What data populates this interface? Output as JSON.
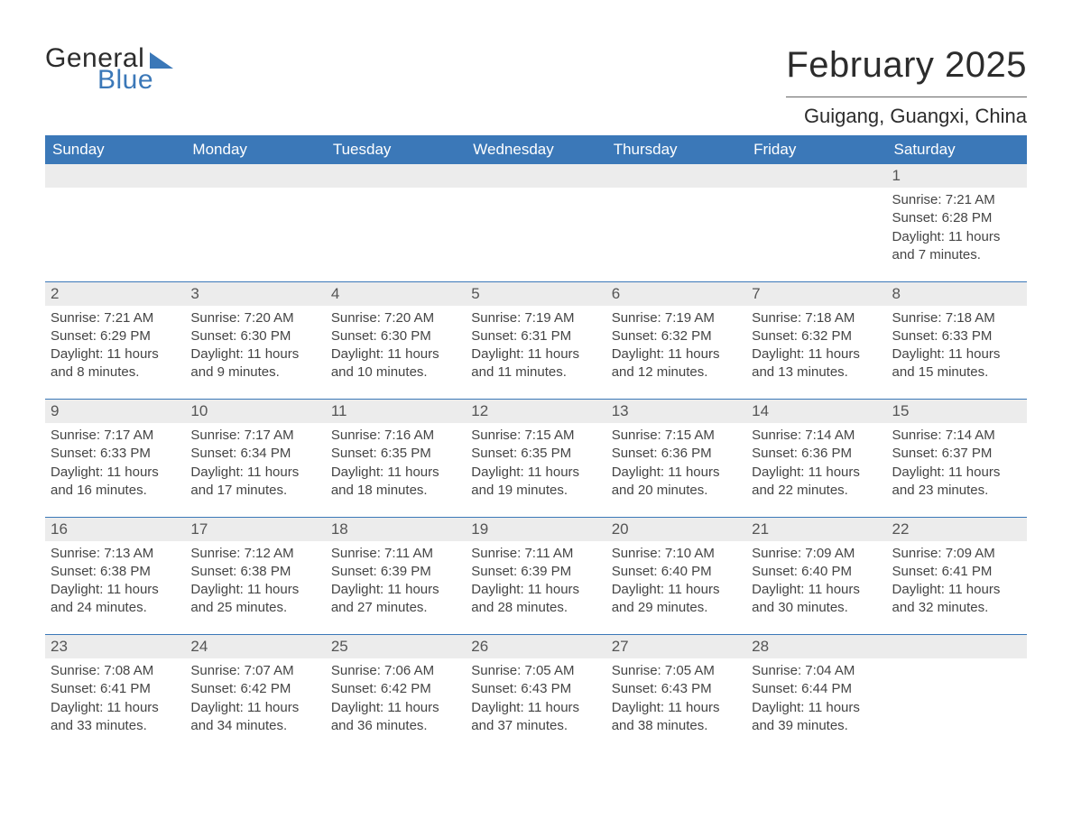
{
  "brand": {
    "word1": "General",
    "word2": "Blue",
    "brand_color": "#3b78b8"
  },
  "title": "February 2025",
  "location": "Guigang, Guangxi, China",
  "colors": {
    "header_bg": "#3b78b8",
    "daynum_bg": "#ececec",
    "rule": "#3b78b8",
    "page_bg": "#ffffff",
    "text": "#333333"
  },
  "weekdays": [
    "Sunday",
    "Monday",
    "Tuesday",
    "Wednesday",
    "Thursday",
    "Friday",
    "Saturday"
  ],
  "labels": {
    "sunrise": "Sunrise:",
    "sunset": "Sunset:",
    "daylight": "Daylight:"
  },
  "weeks": [
    [
      null,
      null,
      null,
      null,
      null,
      null,
      {
        "n": "1",
        "sunrise": "7:21 AM",
        "sunset": "6:28 PM",
        "daylight": "11 hours and 7 minutes."
      }
    ],
    [
      {
        "n": "2",
        "sunrise": "7:21 AM",
        "sunset": "6:29 PM",
        "daylight": "11 hours and 8 minutes."
      },
      {
        "n": "3",
        "sunrise": "7:20 AM",
        "sunset": "6:30 PM",
        "daylight": "11 hours and 9 minutes."
      },
      {
        "n": "4",
        "sunrise": "7:20 AM",
        "sunset": "6:30 PM",
        "daylight": "11 hours and 10 minutes."
      },
      {
        "n": "5",
        "sunrise": "7:19 AM",
        "sunset": "6:31 PM",
        "daylight": "11 hours and 11 minutes."
      },
      {
        "n": "6",
        "sunrise": "7:19 AM",
        "sunset": "6:32 PM",
        "daylight": "11 hours and 12 minutes."
      },
      {
        "n": "7",
        "sunrise": "7:18 AM",
        "sunset": "6:32 PM",
        "daylight": "11 hours and 13 minutes."
      },
      {
        "n": "8",
        "sunrise": "7:18 AM",
        "sunset": "6:33 PM",
        "daylight": "11 hours and 15 minutes."
      }
    ],
    [
      {
        "n": "9",
        "sunrise": "7:17 AM",
        "sunset": "6:33 PM",
        "daylight": "11 hours and 16 minutes."
      },
      {
        "n": "10",
        "sunrise": "7:17 AM",
        "sunset": "6:34 PM",
        "daylight": "11 hours and 17 minutes."
      },
      {
        "n": "11",
        "sunrise": "7:16 AM",
        "sunset": "6:35 PM",
        "daylight": "11 hours and 18 minutes."
      },
      {
        "n": "12",
        "sunrise": "7:15 AM",
        "sunset": "6:35 PM",
        "daylight": "11 hours and 19 minutes."
      },
      {
        "n": "13",
        "sunrise": "7:15 AM",
        "sunset": "6:36 PM",
        "daylight": "11 hours and 20 minutes."
      },
      {
        "n": "14",
        "sunrise": "7:14 AM",
        "sunset": "6:36 PM",
        "daylight": "11 hours and 22 minutes."
      },
      {
        "n": "15",
        "sunrise": "7:14 AM",
        "sunset": "6:37 PM",
        "daylight": "11 hours and 23 minutes."
      }
    ],
    [
      {
        "n": "16",
        "sunrise": "7:13 AM",
        "sunset": "6:38 PM",
        "daylight": "11 hours and 24 minutes."
      },
      {
        "n": "17",
        "sunrise": "7:12 AM",
        "sunset": "6:38 PM",
        "daylight": "11 hours and 25 minutes."
      },
      {
        "n": "18",
        "sunrise": "7:11 AM",
        "sunset": "6:39 PM",
        "daylight": "11 hours and 27 minutes."
      },
      {
        "n": "19",
        "sunrise": "7:11 AM",
        "sunset": "6:39 PM",
        "daylight": "11 hours and 28 minutes."
      },
      {
        "n": "20",
        "sunrise": "7:10 AM",
        "sunset": "6:40 PM",
        "daylight": "11 hours and 29 minutes."
      },
      {
        "n": "21",
        "sunrise": "7:09 AM",
        "sunset": "6:40 PM",
        "daylight": "11 hours and 30 minutes."
      },
      {
        "n": "22",
        "sunrise": "7:09 AM",
        "sunset": "6:41 PM",
        "daylight": "11 hours and 32 minutes."
      }
    ],
    [
      {
        "n": "23",
        "sunrise": "7:08 AM",
        "sunset": "6:41 PM",
        "daylight": "11 hours and 33 minutes."
      },
      {
        "n": "24",
        "sunrise": "7:07 AM",
        "sunset": "6:42 PM",
        "daylight": "11 hours and 34 minutes."
      },
      {
        "n": "25",
        "sunrise": "7:06 AM",
        "sunset": "6:42 PM",
        "daylight": "11 hours and 36 minutes."
      },
      {
        "n": "26",
        "sunrise": "7:05 AM",
        "sunset": "6:43 PM",
        "daylight": "11 hours and 37 minutes."
      },
      {
        "n": "27",
        "sunrise": "7:05 AM",
        "sunset": "6:43 PM",
        "daylight": "11 hours and 38 minutes."
      },
      {
        "n": "28",
        "sunrise": "7:04 AM",
        "sunset": "6:44 PM",
        "daylight": "11 hours and 39 minutes."
      },
      null
    ]
  ]
}
